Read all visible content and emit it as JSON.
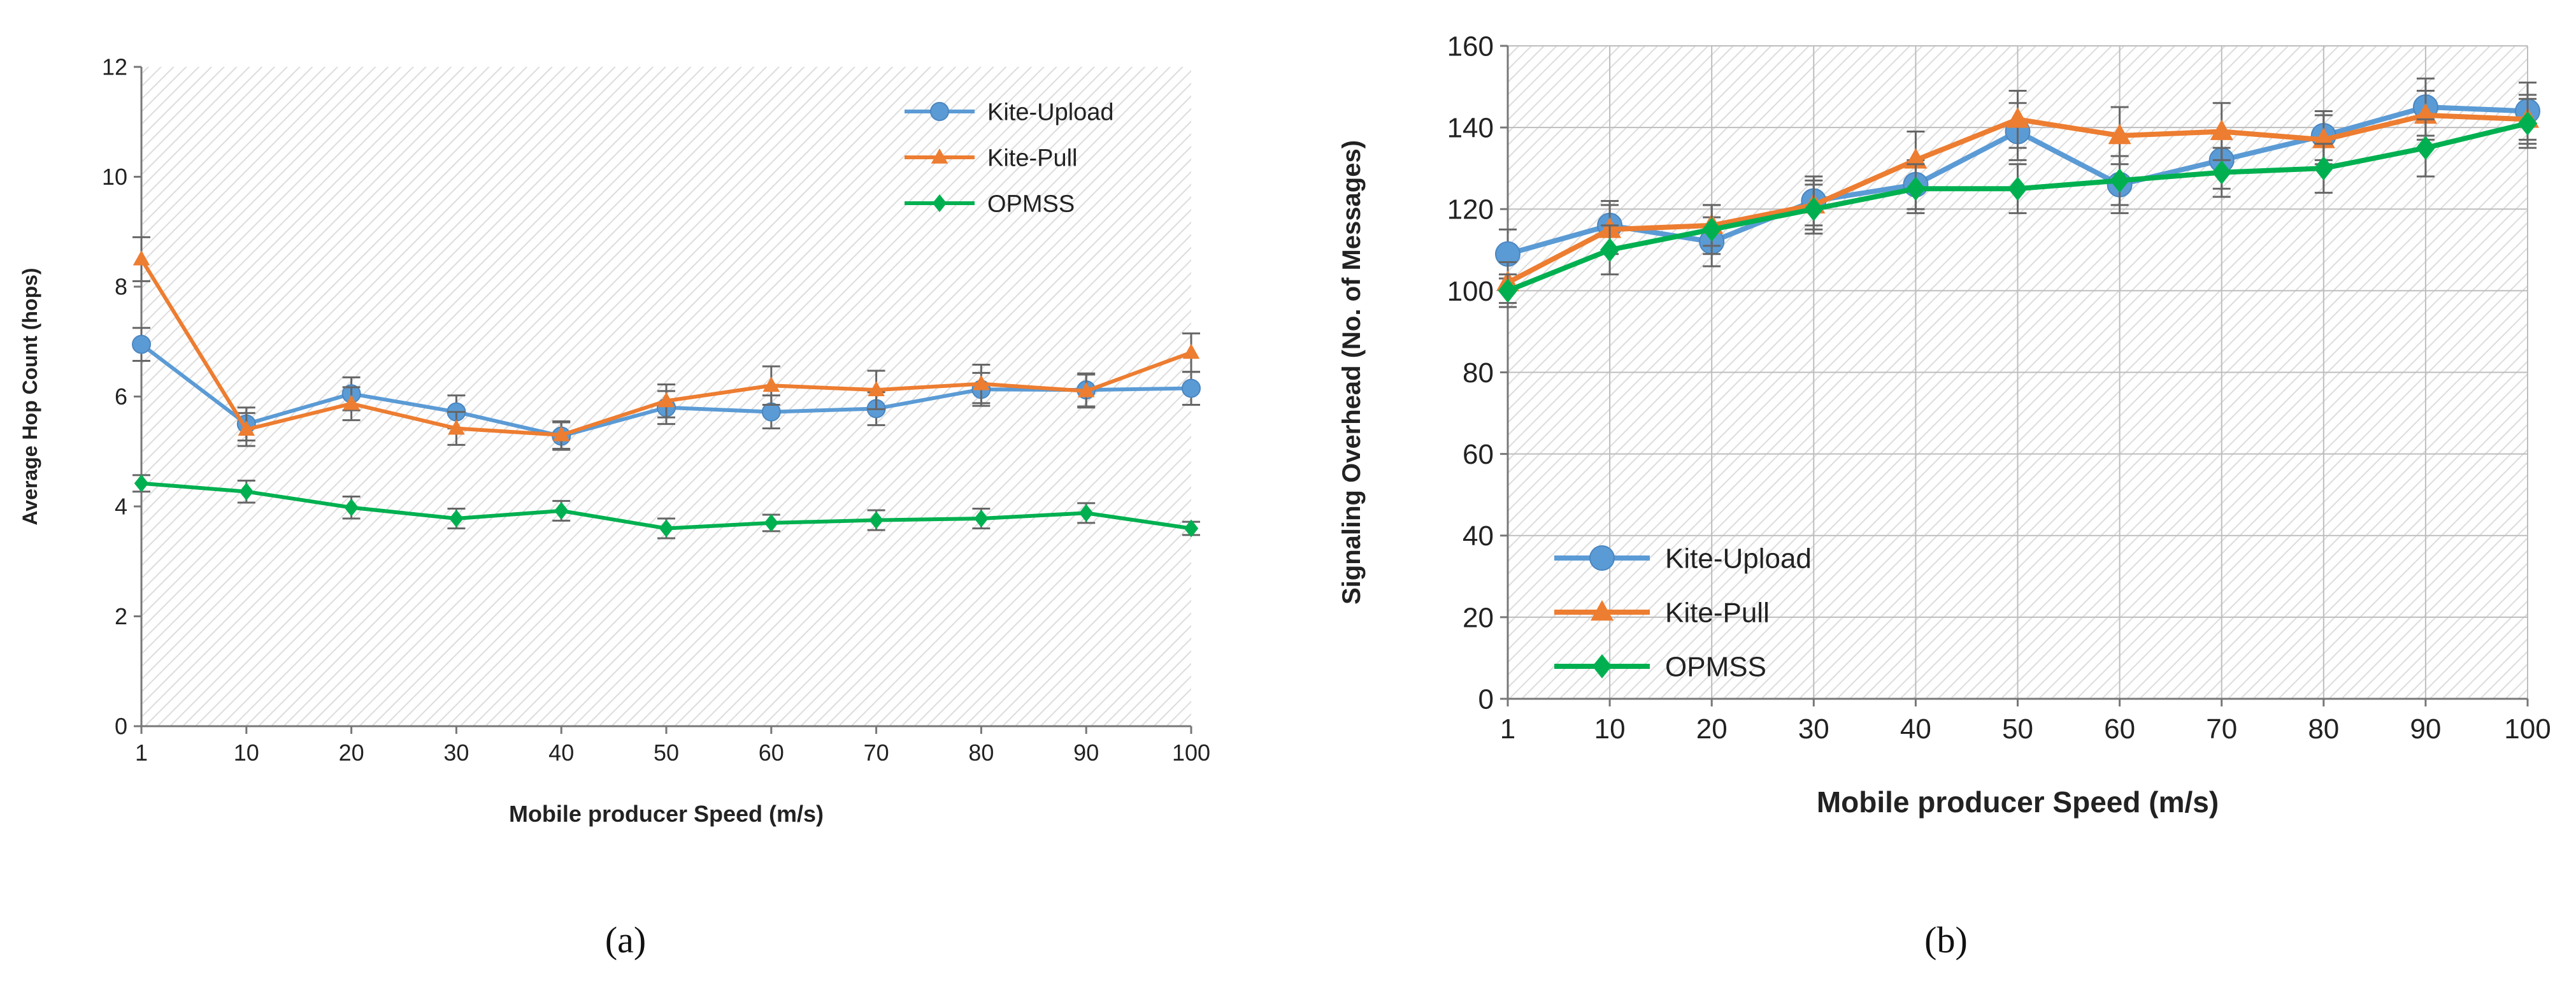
{
  "chart_data": [
    {
      "type": "line",
      "x": [
        1,
        10,
        20,
        30,
        40,
        50,
        60,
        70,
        80,
        90,
        100
      ],
      "xlabel": "Mobile producer Speed (m/s)",
      "ylabel": "Average Hop Count (hops)",
      "ylim": [
        0,
        12
      ],
      "yticks": [
        0,
        2,
        4,
        6,
        8,
        10,
        12
      ],
      "grid": false,
      "legend_position": "top-right",
      "caption": "(a)",
      "series": [
        {
          "name": "Kite-Upload",
          "color": "#5b9bd5",
          "marker": "circle",
          "values": [
            6.95,
            5.5,
            6.05,
            5.72,
            5.28,
            5.8,
            5.72,
            5.78,
            6.13,
            6.12,
            6.15
          ],
          "errors": [
            0.3,
            0.3,
            0.3,
            0.3,
            0.25,
            0.3,
            0.3,
            0.3,
            0.3,
            0.3,
            0.3
          ]
        },
        {
          "name": "Kite-Pull",
          "color": "#ed7d31",
          "marker": "triangle",
          "values": [
            8.5,
            5.4,
            5.87,
            5.42,
            5.3,
            5.92,
            6.2,
            6.12,
            6.23,
            6.1,
            6.8
          ],
          "errors": [
            0.4,
            0.3,
            0.3,
            0.3,
            0.25,
            0.3,
            0.35,
            0.35,
            0.35,
            0.3,
            0.35
          ]
        },
        {
          "name": "OPMSS",
          "color": "#00b050",
          "marker": "diamond",
          "values": [
            4.42,
            4.27,
            3.98,
            3.78,
            3.92,
            3.6,
            3.7,
            3.75,
            3.78,
            3.88,
            3.6
          ],
          "errors": [
            0.15,
            0.2,
            0.2,
            0.18,
            0.18,
            0.18,
            0.15,
            0.18,
            0.18,
            0.18,
            0.12
          ]
        }
      ]
    },
    {
      "type": "line",
      "x": [
        1,
        10,
        20,
        30,
        40,
        50,
        60,
        70,
        80,
        90,
        100
      ],
      "xlabel": "Mobile producer Speed (m/s)",
      "ylabel": "Signaling Overhead (No. of Messages)",
      "ylim": [
        0,
        160
      ],
      "yticks": [
        0,
        20,
        40,
        60,
        80,
        100,
        120,
        140,
        160
      ],
      "grid": true,
      "legend_position": "bottom-left",
      "caption": "(b)",
      "series": [
        {
          "name": "Kite-Upload",
          "color": "#5b9bd5",
          "marker": "circle",
          "values": [
            109,
            116,
            112,
            122,
            126,
            139,
            126,
            132,
            138,
            145,
            144
          ],
          "errors": [
            6,
            6,
            6,
            6,
            6,
            7,
            7,
            7,
            6,
            7,
            7
          ]
        },
        {
          "name": "Kite-Pull",
          "color": "#ed7d31",
          "marker": "triangle",
          "values": [
            102,
            115,
            116,
            121,
            132,
            142,
            138,
            139,
            137,
            143,
            142
          ],
          "errors": [
            5,
            6,
            5,
            6,
            7,
            7,
            7,
            7,
            6,
            6,
            6
          ]
        },
        {
          "name": "OPMSS",
          "color": "#00b050",
          "marker": "diamond",
          "values": [
            100,
            110,
            115,
            120,
            125,
            125,
            127,
            129,
            130,
            135,
            141
          ],
          "errors": [
            4,
            6,
            6,
            6,
            6,
            6,
            6,
            6,
            6,
            7,
            6
          ]
        }
      ]
    }
  ]
}
